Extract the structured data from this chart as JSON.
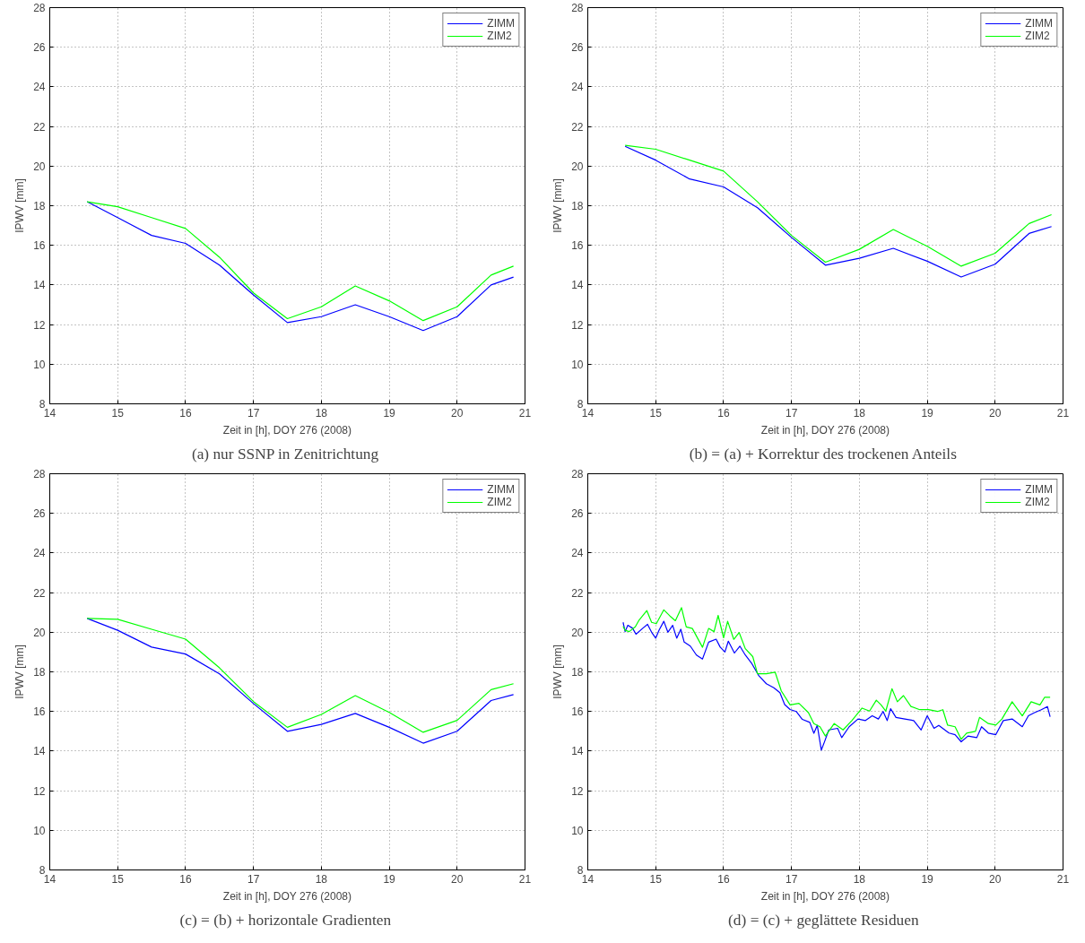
{
  "chart_data": [
    {
      "type": "line",
      "xlabel": "Zeit in [h], DOY 276 (2008)",
      "ylabel": "IPWV [mm]",
      "annotations": [
        "(a)  nur SSNP in Zenitrichtung"
      ],
      "xlim": [
        14,
        21
      ],
      "ylim": [
        8,
        28
      ],
      "xticks": [
        14,
        15,
        16,
        17,
        18,
        19,
        20,
        21
      ],
      "yticks": [
        8,
        10,
        12,
        14,
        16,
        18,
        20,
        22,
        24,
        26,
        28
      ],
      "grid": true,
      "legend": "top right",
      "line_style": "solid",
      "marker": "none",
      "x": [
        14.55,
        15,
        15.5,
        16,
        16.5,
        17,
        17.5,
        18,
        18.5,
        19,
        19.5,
        20,
        20.5,
        20.83
      ],
      "series": [
        {
          "name": "ZIMM",
          "color": "#0000ff",
          "values": [
            18.2,
            17.4,
            16.5,
            16.1,
            15.0,
            13.5,
            12.1,
            12.4,
            13.0,
            12.4,
            11.7,
            12.4,
            14.0,
            14.4
          ]
        },
        {
          "name": "ZIM2",
          "color": "#00ff00",
          "values": [
            18.2,
            17.95,
            17.4,
            16.85,
            15.4,
            13.6,
            12.3,
            12.9,
            13.95,
            13.2,
            12.2,
            12.9,
            14.5,
            14.95
          ]
        }
      ]
    },
    {
      "type": "line",
      "xlabel": "Zeit in [h], DOY 276 (2008)",
      "ylabel": "IPWV [mm]",
      "annotations": [
        "(b)  = (a) + Korrektur des trockenen Anteils"
      ],
      "xlim": [
        14,
        21
      ],
      "ylim": [
        8,
        28
      ],
      "xticks": [
        14,
        15,
        16,
        17,
        18,
        19,
        20,
        21
      ],
      "yticks": [
        8,
        10,
        12,
        14,
        16,
        18,
        20,
        22,
        24,
        26,
        28
      ],
      "grid": true,
      "legend": "top right",
      "line_style": "solid",
      "marker": "none",
      "x": [
        14.55,
        15,
        15.5,
        16,
        16.5,
        17,
        17.5,
        18,
        18.5,
        19,
        19.5,
        20,
        20.5,
        20.83
      ],
      "series": [
        {
          "name": "ZIMM",
          "color": "#0000ff",
          "values": [
            21.0,
            20.3,
            19.35,
            18.95,
            17.9,
            16.4,
            15.0,
            15.35,
            15.85,
            15.2,
            14.4,
            15.05,
            16.6,
            16.95
          ]
        },
        {
          "name": "ZIM2",
          "color": "#00ff00",
          "values": [
            21.05,
            20.85,
            20.3,
            19.75,
            18.2,
            16.5,
            15.15,
            15.8,
            16.8,
            15.95,
            14.95,
            15.6,
            17.1,
            17.55
          ]
        }
      ]
    },
    {
      "type": "line",
      "xlabel": "Zeit in [h], DOY 276 (2008)",
      "ylabel": "IPWV [mm]",
      "annotations": [
        "(c)  = (b) + horizontale Gradienten"
      ],
      "xlim": [
        14,
        21
      ],
      "ylim": [
        8,
        28
      ],
      "xticks": [
        14,
        15,
        16,
        17,
        18,
        19,
        20,
        21
      ],
      "yticks": [
        8,
        10,
        12,
        14,
        16,
        18,
        20,
        22,
        24,
        26,
        28
      ],
      "grid": true,
      "legend": "top right",
      "line_style": "solid",
      "marker": "none",
      "x": [
        14.55,
        15,
        15.5,
        16,
        16.5,
        17,
        17.5,
        18,
        18.5,
        19,
        19.5,
        20,
        20.5,
        20.83
      ],
      "series": [
        {
          "name": "ZIMM",
          "color": "#0000ff",
          "values": [
            20.7,
            20.1,
            19.25,
            18.9,
            17.9,
            16.4,
            15.0,
            15.35,
            15.9,
            15.2,
            14.4,
            15.0,
            16.55,
            16.85
          ]
        },
        {
          "name": "ZIM2",
          "color": "#00ff00",
          "values": [
            20.7,
            20.65,
            20.15,
            19.65,
            18.2,
            16.5,
            15.2,
            15.85,
            16.8,
            15.95,
            14.95,
            15.55,
            17.1,
            17.4
          ]
        }
      ]
    },
    {
      "type": "line",
      "xlabel": "Zeit in [h], DOY 276 (2008)",
      "ylabel": "IPWV [mm]",
      "annotations": [
        "(d)  = (c) + geglättete Residuen"
      ],
      "xlim": [
        14,
        21
      ],
      "ylim": [
        8,
        28
      ],
      "xticks": [
        14,
        15,
        16,
        17,
        18,
        19,
        20,
        21
      ],
      "yticks": [
        8,
        10,
        12,
        14,
        16,
        18,
        20,
        22,
        24,
        26,
        28
      ],
      "grid": true,
      "legend": "top right",
      "line_style": "solid",
      "marker": "none",
      "series": [
        {
          "name": "ZIMM",
          "color": "#0000ff",
          "x": [
            14.52,
            14.55,
            14.59,
            14.66,
            14.71,
            14.81,
            14.88,
            14.94,
            15.0,
            15.05,
            15.12,
            15.18,
            15.25,
            15.31,
            15.37,
            15.42,
            15.51,
            15.6,
            15.69,
            15.78,
            15.89,
            15.95,
            16.02,
            16.07,
            16.16,
            16.24,
            16.32,
            16.41,
            16.52,
            16.63,
            16.74,
            16.83,
            16.9,
            16.98,
            17.07,
            17.16,
            17.27,
            17.33,
            17.38,
            17.44,
            17.49,
            17.55,
            17.68,
            17.74,
            17.85,
            17.98,
            18.09,
            18.19,
            18.28,
            18.35,
            18.41,
            18.46,
            18.54,
            18.67,
            18.8,
            18.91,
            19.0,
            19.1,
            19.17,
            19.32,
            19.41,
            19.5,
            19.6,
            19.73,
            19.8,
            19.9,
            20.01,
            20.12,
            20.25,
            20.4,
            20.49,
            20.58,
            20.68,
            20.77,
            20.81
          ],
          "values": [
            20.5,
            20.03,
            20.35,
            20.2,
            19.9,
            20.2,
            20.4,
            20.0,
            19.7,
            20.1,
            20.55,
            20.0,
            20.35,
            19.7,
            20.15,
            19.5,
            19.3,
            18.85,
            18.65,
            19.5,
            19.65,
            19.25,
            19.0,
            19.55,
            18.95,
            19.3,
            18.85,
            18.45,
            17.8,
            17.4,
            17.2,
            16.95,
            16.35,
            16.1,
            16.0,
            15.6,
            15.45,
            14.9,
            15.3,
            14.05,
            14.5,
            15.07,
            15.15,
            14.68,
            15.23,
            15.62,
            15.54,
            15.78,
            15.62,
            16.0,
            15.54,
            16.14,
            15.7,
            15.62,
            15.54,
            15.07,
            15.78,
            15.15,
            15.3,
            14.91,
            14.83,
            14.47,
            14.76,
            14.68,
            15.23,
            14.91,
            14.83,
            15.54,
            15.62,
            15.23,
            15.78,
            15.94,
            16.09,
            16.25,
            15.73
          ]
        },
        {
          "name": "ZIM2",
          "color": "#00ff00",
          "x": [
            14.52,
            14.55,
            14.61,
            14.7,
            14.75,
            14.87,
            14.94,
            15.01,
            15.12,
            15.21,
            15.29,
            15.38,
            15.45,
            15.54,
            15.69,
            15.78,
            15.86,
            15.92,
            16.0,
            16.06,
            16.15,
            16.23,
            16.32,
            16.43,
            16.5,
            16.63,
            16.76,
            16.85,
            16.98,
            17.11,
            17.25,
            17.33,
            17.42,
            17.5,
            17.63,
            17.76,
            17.89,
            18.04,
            18.15,
            18.25,
            18.32,
            18.39,
            18.48,
            18.56,
            18.65,
            18.76,
            18.89,
            19.02,
            19.15,
            19.23,
            19.3,
            19.41,
            19.5,
            19.58,
            19.71,
            19.77,
            19.9,
            20.01,
            20.1,
            20.25,
            20.4,
            20.53,
            20.66,
            20.73,
            20.81
          ],
          "values": [
            20.3,
            20.1,
            20.03,
            20.27,
            20.58,
            21.09,
            20.5,
            20.43,
            21.13,
            20.82,
            20.58,
            21.24,
            20.27,
            20.19,
            19.24,
            20.19,
            20.03,
            20.85,
            19.72,
            20.55,
            19.64,
            19.98,
            19.17,
            18.77,
            17.9,
            17.9,
            17.98,
            17.04,
            16.33,
            16.41,
            15.94,
            15.39,
            15.23,
            14.76,
            15.39,
            15.07,
            15.54,
            16.17,
            16.02,
            16.57,
            16.33,
            16.02,
            17.15,
            16.49,
            16.8,
            16.25,
            16.09,
            16.09,
            16.0,
            16.09,
            15.31,
            15.23,
            14.6,
            14.91,
            15.0,
            15.7,
            15.39,
            15.31,
            15.62,
            16.49,
            15.78,
            16.49,
            16.33,
            16.72,
            16.72
          ]
        }
      ]
    }
  ]
}
